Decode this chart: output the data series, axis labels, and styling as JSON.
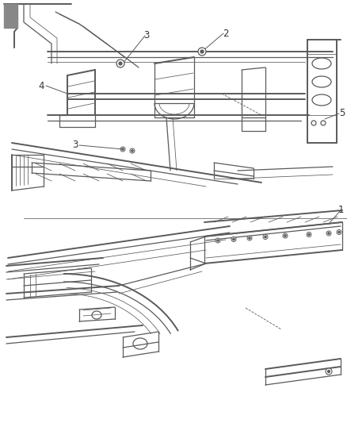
{
  "bg_color": "#ffffff",
  "line_color": "#5a5a5a",
  "label_color": "#333333",
  "lw_thick": 1.4,
  "lw_main": 0.9,
  "lw_thin": 0.55,
  "fig_w": 4.38,
  "fig_h": 5.33,
  "dpi": 100
}
